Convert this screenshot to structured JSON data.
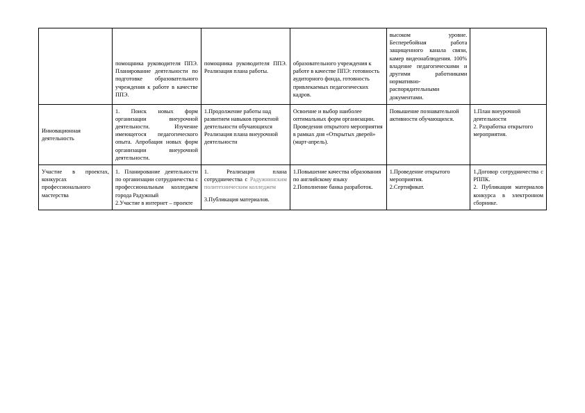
{
  "table": {
    "columns": [
      "c1",
      "c2",
      "c3",
      "c4",
      "c5",
      "c6"
    ],
    "row1": {
      "c1": "",
      "c2": "помощника руководителя ППЭ. Планирование деятельности по подготовке образовательного учреждения к работе в качестве ППЭ.",
      "c3": "помощника руководителя ППЭ. Реализация плана работы.",
      "c4": "образовательного учреждения к работе в качестве ППЭ: готовность аудиторного фонда, готовность привлекаемых педагогических кадров.",
      "c5": "высоком уровне. Бесперебойная работа защищенного канала связи, камер видеонаблюдения. 100% владение педагогическими и другими работниками нормативно-распорядительными документами.",
      "c6": ""
    },
    "row2": {
      "c1": "Инновационная деятельность",
      "c2": "1. Поиск новых форм организации внеурочной деятельности. Изучение имеющегося педагогического опыта. Апробация новых форм организации внеурочной деятельности.",
      "c3": "1.Продолжение работы над развитием навыков проектной деятельности обучающихся Реализация плана внеурочной деятельности",
      "c4": "Освоение и выбор наиболее оптимальных форм организации. Проведения открытого мероприятия в рамках дня «Открытых дверей» (март-апрель).",
      "c5": "Повышение познавательной активности обучающихся.",
      "c6": "1.План внеурочной деятельности\n2. Разработка открытого мероприятия."
    },
    "row3": {
      "c1": "Участие в проектах, конкурсах профессионального мастерства",
      "c2_a": "1. Планирование деятельности по организации сотрудничества с профессиональным колледжем города Радужный",
      "c2_b": "2.Участие в интернет – проекте",
      "c3_a": "1. Реализация плана сотрудничества с ",
      "c3_b": "Радужнинским политехническим колледжем",
      "c3_c": "3.Публикация материалов.",
      "c4": "1.Повышение качества образования по английскому языку\n2.Пополнение банка разработок.",
      "c5": "1.Проведение открытого мероприятия.\n2.Сертификат.",
      "c6": "1.Договор сотрудничества с РППК.\n2. Публикация материалов конкурса в электронном сборнике."
    }
  },
  "style": {
    "font_family": "Times New Roman",
    "font_size_pt": 8.3,
    "border_color": "#000000",
    "background_color": "#ffffff",
    "muted_color": "#7a7a7a"
  }
}
